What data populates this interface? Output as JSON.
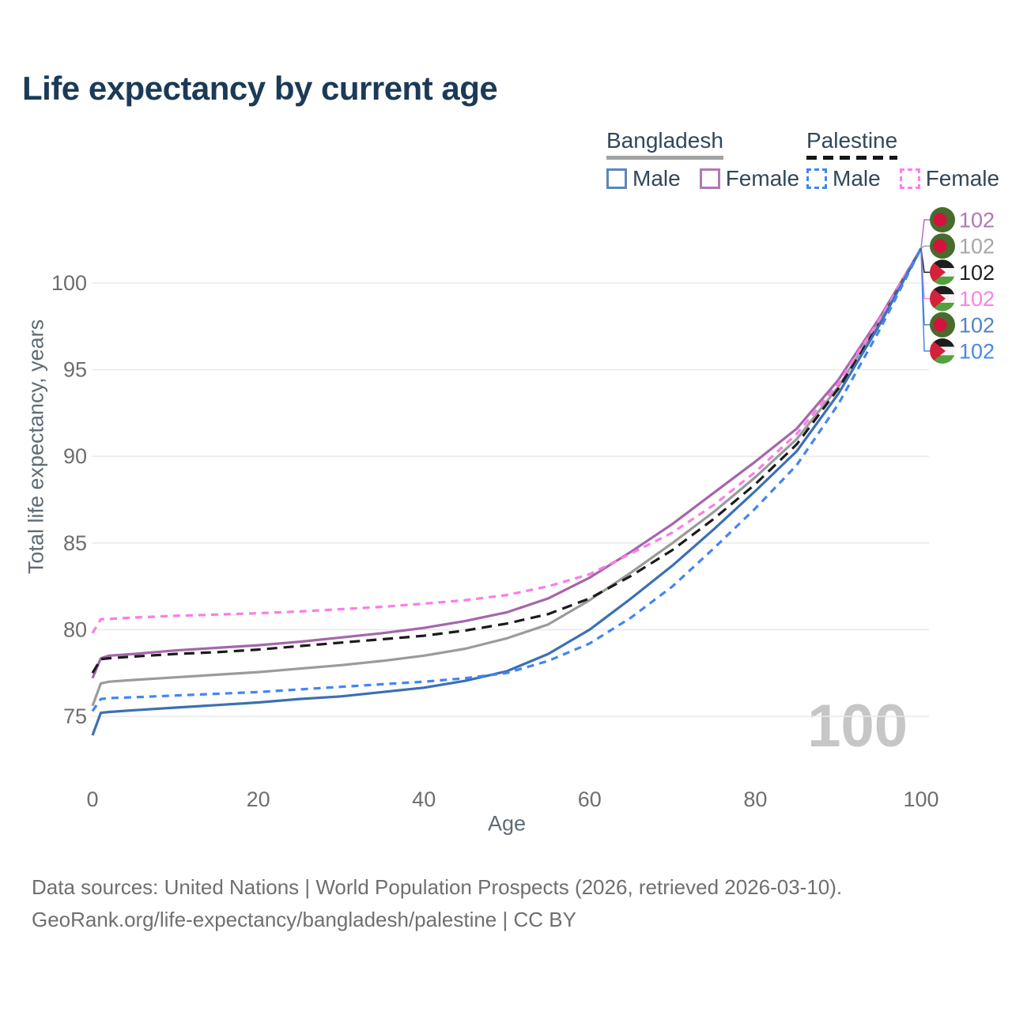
{
  "header": {
    "title": "Life expectancy by current age"
  },
  "legend": {
    "groups": [
      {
        "country": "Bangladesh",
        "line_style": "solid",
        "underline_color": "#a3a3a3",
        "items": [
          {
            "label": "Male",
            "color": "#5b86bb",
            "dash": false
          },
          {
            "label": "Female",
            "color": "#b279b2",
            "dash": false
          }
        ]
      },
      {
        "country": "Palestine",
        "line_style": "dashed",
        "underline_color": "#161616",
        "items": [
          {
            "label": "Male",
            "color": "#4285f4",
            "dash": true
          },
          {
            "label": "Female",
            "color": "#ff80e5",
            "dash": true
          }
        ]
      }
    ]
  },
  "watermark": {
    "text": "100",
    "color": "#c6c6c6"
  },
  "footer": {
    "line1": "Data sources: United Nations | World Population Prospects (2026, retrieved 2026-03-10).",
    "line2": "GeoRank.org/life-expectancy/bangladesh/palestine | CC BY"
  },
  "flags": {
    "bangladesh": {
      "green": "#486b2e",
      "red": "#d4123d"
    },
    "palestine": {
      "black": "#1d1d1d",
      "white": "#f5f5f5",
      "green": "#53a13e",
      "red": "#d4213c"
    }
  },
  "chart_data": {
    "type": "line",
    "title": "Life expectancy by current age",
    "xlabel": "Age",
    "ylabel": "Total life expectancy, years",
    "xlim": [
      0,
      100
    ],
    "ylim": [
      73,
      103
    ],
    "xticks": [
      0,
      20,
      40,
      60,
      80,
      100
    ],
    "yticks": [
      75,
      80,
      85,
      90,
      95,
      100
    ],
    "grid": "horizontal-only",
    "legend_position": "top-right",
    "x": [
      0,
      1,
      2,
      5,
      10,
      15,
      20,
      25,
      30,
      35,
      40,
      45,
      50,
      55,
      60,
      65,
      70,
      75,
      80,
      85,
      90,
      95,
      100
    ],
    "series": [
      {
        "name": "Bangladesh Female",
        "country": "Bangladesh",
        "sex": "Female",
        "flag": "bangladesh",
        "color": "#a566ab",
        "label_color": "#b273b8",
        "line_dash": "solid",
        "end_label": "102",
        "values": [
          77.2,
          78.35,
          78.5,
          78.6,
          78.8,
          78.95,
          79.1,
          79.3,
          79.55,
          79.8,
          80.1,
          80.5,
          81.0,
          81.8,
          83.0,
          84.5,
          86.1,
          87.9,
          89.7,
          91.6,
          94.4,
          98.0,
          102
        ]
      },
      {
        "name": "Bangladesh Total",
        "country": "Bangladesh",
        "sex": "Total",
        "flag": "bangladesh",
        "color": "#9b9b9b",
        "label_color": "#a6a6a6",
        "line_dash": "solid",
        "end_label": "102",
        "values": [
          75.6,
          76.9,
          77.0,
          77.1,
          77.25,
          77.4,
          77.55,
          77.75,
          77.95,
          78.2,
          78.5,
          78.9,
          79.5,
          80.3,
          81.7,
          83.3,
          85.0,
          86.8,
          88.8,
          91.0,
          94.0,
          97.8,
          102
        ]
      },
      {
        "name": "Palestine Total",
        "country": "Palestine",
        "sex": "Total",
        "flag": "palestine",
        "color": "#1b1b1b",
        "label_color": "#1f1f1f",
        "line_dash": "dashed",
        "end_label": "102",
        "values": [
          77.5,
          78.3,
          78.35,
          78.45,
          78.6,
          78.7,
          78.85,
          79.05,
          79.25,
          79.45,
          79.65,
          79.95,
          80.35,
          80.9,
          81.8,
          83.1,
          84.6,
          86.4,
          88.4,
          90.7,
          93.9,
          97.7,
          102
        ]
      },
      {
        "name": "Palestine Female",
        "country": "Palestine",
        "sex": "Female",
        "flag": "palestine",
        "color": "#fb7de4",
        "label_color": "#ff80e5",
        "line_dash": "dashed",
        "end_label": "102",
        "values": [
          79.8,
          80.6,
          80.62,
          80.7,
          80.8,
          80.87,
          80.95,
          81.05,
          81.18,
          81.32,
          81.5,
          81.7,
          82.0,
          82.5,
          83.2,
          84.4,
          85.6,
          87.2,
          89.1,
          91.3,
          94.2,
          97.9,
          102
        ]
      },
      {
        "name": "Bangladesh Male",
        "country": "Bangladesh",
        "sex": "Male",
        "flag": "bangladesh",
        "color": "#3b70b5",
        "label_color": "#5083c4",
        "line_dash": "solid",
        "end_label": "102",
        "values": [
          73.9,
          75.2,
          75.25,
          75.35,
          75.5,
          75.65,
          75.8,
          76.0,
          76.15,
          76.4,
          76.65,
          77.05,
          77.6,
          78.6,
          80.0,
          81.8,
          83.7,
          85.8,
          88.0,
          90.3,
          93.6,
          97.6,
          102
        ]
      },
      {
        "name": "Palestine Male",
        "country": "Palestine",
        "sex": "Male",
        "flag": "palestine",
        "color": "#4285f4",
        "label_color": "#4787ec",
        "line_dash": "dashed",
        "end_label": "102",
        "values": [
          75.3,
          76.0,
          76.05,
          76.1,
          76.2,
          76.3,
          76.4,
          76.55,
          76.7,
          76.85,
          77.0,
          77.2,
          77.5,
          78.2,
          79.2,
          80.7,
          82.5,
          84.7,
          87.0,
          89.5,
          93.0,
          97.3,
          102
        ]
      }
    ]
  }
}
